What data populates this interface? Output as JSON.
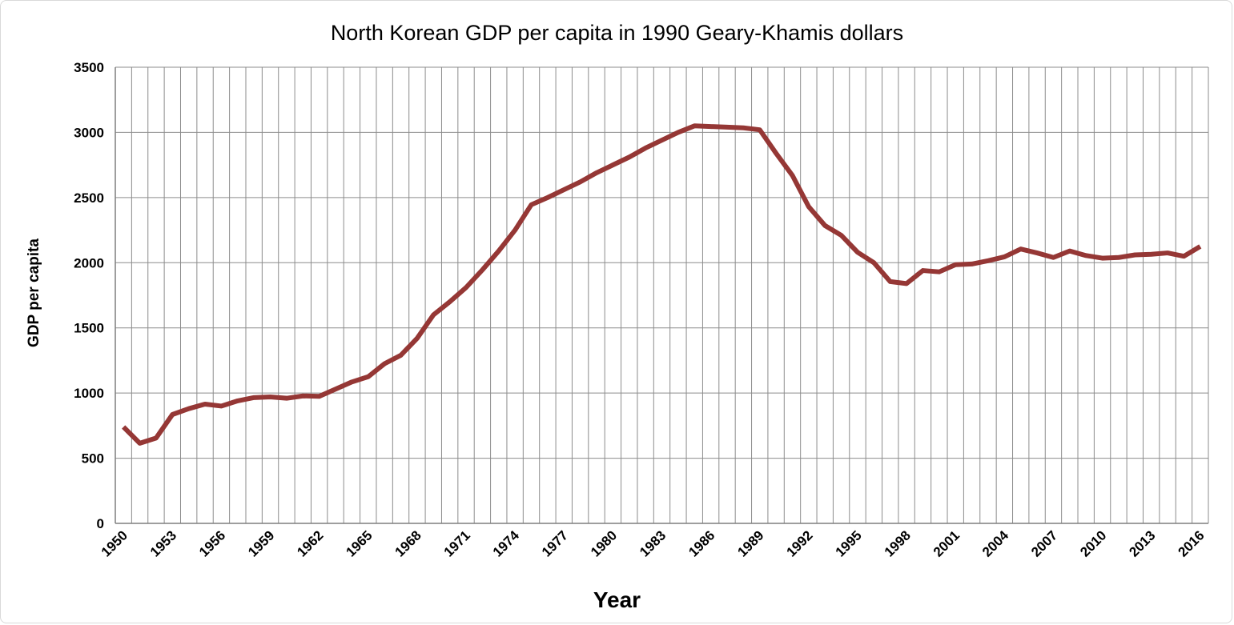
{
  "chart_data": {
    "type": "line",
    "title": "North Korean GDP per capita in 1990 Geary-Khamis dollars",
    "xlabel": "Year",
    "ylabel": "GDP per capita",
    "ylim": [
      0,
      3500
    ],
    "yticks": [
      0,
      500,
      1000,
      1500,
      2000,
      2500,
      3000,
      3500
    ],
    "xticks": [
      1950,
      1953,
      1956,
      1959,
      1962,
      1965,
      1968,
      1971,
      1974,
      1977,
      1980,
      1983,
      1986,
      1989,
      1992,
      1995,
      1998,
      2001,
      2004,
      2007,
      2010,
      2013,
      2016
    ],
    "grid": true,
    "legend": "none",
    "line_color": "#953735",
    "series": [
      {
        "x": [
          1950,
          1951,
          1952,
          1953,
          1954,
          1955,
          1956,
          1957,
          1958,
          1959,
          1960,
          1961,
          1962,
          1963,
          1964,
          1965,
          1966,
          1967,
          1968,
          1969,
          1970,
          1971,
          1972,
          1973,
          1974,
          1975,
          1976,
          1977,
          1978,
          1979,
          1980,
          1981,
          1982,
          1983,
          1984,
          1985,
          1986,
          1987,
          1988,
          1989,
          1990,
          1991,
          1992,
          1993,
          1994,
          1995,
          1996,
          1997,
          1998,
          1999,
          2000,
          2001,
          2002,
          2003,
          2004,
          2005,
          2006,
          2007,
          2008,
          2009,
          2010,
          2011,
          2012,
          2013,
          2014,
          2015,
          2016
        ],
        "values": [
          740,
          615,
          655,
          835,
          880,
          915,
          900,
          940,
          965,
          970,
          960,
          978,
          975,
          1030,
          1085,
          1125,
          1225,
          1290,
          1420,
          1600,
          1700,
          1810,
          1945,
          2090,
          2250,
          2445,
          2500,
          2560,
          2620,
          2690,
          2750,
          2810,
          2880,
          2940,
          3000,
          3050,
          3045,
          3040,
          3035,
          3020,
          2840,
          2670,
          2430,
          2285,
          2210,
          2080,
          2000,
          1855,
          1840,
          1940,
          1930,
          1985,
          1990,
          2015,
          2045,
          2105,
          2075,
          2040,
          2090,
          2055,
          2035,
          2040,
          2060,
          2065,
          2075,
          2050,
          2125
        ]
      }
    ]
  }
}
